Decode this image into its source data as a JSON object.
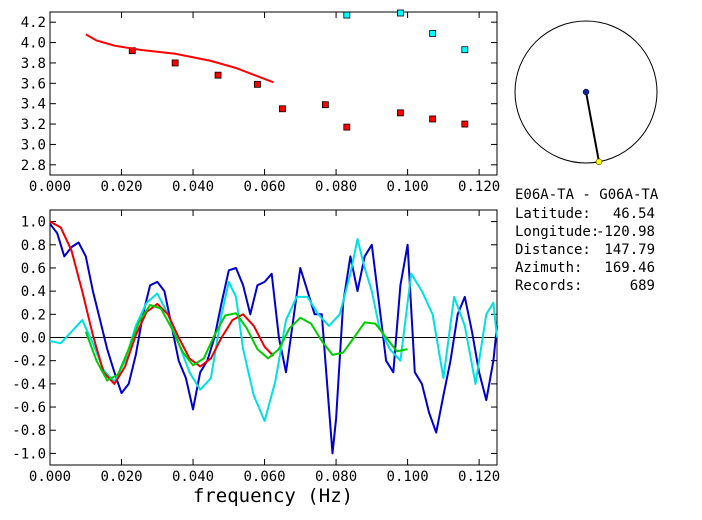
{
  "station": {
    "pair": "E06A-TA - G06A-TA",
    "lines": [
      {
        "label": "Latitude:",
        "value": "46.54"
      },
      {
        "label": "Longitude:",
        "value": "-120.98"
      },
      {
        "label": "Distance:",
        "value": "147.79"
      },
      {
        "label": "Azimuth:",
        "value": "169.46"
      },
      {
        "label": "Records:",
        "value": "689"
      }
    ],
    "azimuth_deg": 169.46
  },
  "chart_data": [
    {
      "type": "scatter",
      "title": "",
      "xlabel": "",
      "ylabel": "",
      "xlim": [
        0.0,
        0.125
      ],
      "ylim": [
        2.7,
        4.3
      ],
      "xticks": [
        "0.000",
        "0.020",
        "0.040",
        "0.060",
        "0.080",
        "0.100",
        "0.120"
      ],
      "yticks": [
        "2.8",
        "3.0",
        "3.2",
        "3.4",
        "3.6",
        "3.8",
        "4.0",
        "4.2"
      ],
      "series": [
        {
          "color": "#ff0000",
          "marker": "square",
          "points": [
            [
              0.023,
              3.92
            ],
            [
              0.035,
              3.8
            ],
            [
              0.047,
              3.68
            ],
            [
              0.058,
              3.59
            ],
            [
              0.065,
              3.35
            ],
            [
              0.077,
              3.39
            ],
            [
              0.083,
              3.17
            ],
            [
              0.098,
              3.31
            ],
            [
              0.107,
              3.25
            ],
            [
              0.116,
              3.2
            ]
          ]
        },
        {
          "color": "#00ffff",
          "marker": "square",
          "points": [
            [
              0.083,
              4.27
            ],
            [
              0.098,
              4.29
            ],
            [
              0.107,
              4.09
            ],
            [
              0.116,
              3.93
            ]
          ]
        },
        {
          "color": "#ff0000",
          "marker": "line",
          "points": [
            [
              0.01,
              4.08
            ],
            [
              0.013,
              4.02
            ],
            [
              0.018,
              3.97
            ],
            [
              0.025,
              3.93
            ],
            [
              0.035,
              3.89
            ],
            [
              0.045,
              3.82
            ],
            [
              0.052,
              3.75
            ],
            [
              0.058,
              3.67
            ],
            [
              0.0625,
              3.61
            ]
          ]
        }
      ]
    },
    {
      "type": "line",
      "title": "",
      "xlabel": "frequency (Hz)",
      "ylabel": "",
      "xlim": [
        0.0,
        0.125
      ],
      "ylim": [
        -1.1,
        1.1
      ],
      "xticks": [
        "0.000",
        "0.020",
        "0.040",
        "0.060",
        "0.080",
        "0.100",
        "0.120"
      ],
      "yticks": [
        "-1.0",
        "-0.8",
        "-0.6",
        "-0.4",
        "-0.2",
        "0.0",
        "0.2",
        "0.4",
        "0.6",
        "0.8",
        "1.0"
      ],
      "series": [
        {
          "color": "#0000cc",
          "x": [
            0.0,
            0.002,
            0.004,
            0.006,
            0.008,
            0.01,
            0.012,
            0.014,
            0.016,
            0.018,
            0.02,
            0.022,
            0.024,
            0.026,
            0.028,
            0.03,
            0.032,
            0.034,
            0.036,
            0.038,
            0.04,
            0.042,
            0.044,
            0.046,
            0.048,
            0.05,
            0.052,
            0.054,
            0.056,
            0.058,
            0.06,
            0.062,
            0.064,
            0.066,
            0.068,
            0.07,
            0.072,
            0.074,
            0.076,
            0.078,
            0.079,
            0.08,
            0.082,
            0.084,
            0.086,
            0.088,
            0.09,
            0.092,
            0.094,
            0.096,
            0.098,
            0.1,
            0.102,
            0.104,
            0.106,
            0.108,
            0.11,
            0.112,
            0.114,
            0.116,
            0.118,
            0.12,
            0.122,
            0.124,
            0.125
          ],
          "y": [
            0.98,
            0.9,
            0.7,
            0.78,
            0.82,
            0.7,
            0.4,
            0.15,
            -0.1,
            -0.3,
            -0.48,
            -0.4,
            -0.15,
            0.2,
            0.45,
            0.48,
            0.4,
            0.1,
            -0.2,
            -0.35,
            -0.62,
            -0.3,
            -0.2,
            0.0,
            0.3,
            0.58,
            0.6,
            0.45,
            0.2,
            0.45,
            0.48,
            0.55,
            0.0,
            -0.3,
            0.15,
            0.6,
            0.4,
            0.2,
            0.2,
            -0.6,
            -1.0,
            -0.7,
            0.3,
            0.7,
            0.4,
            0.7,
            0.8,
            0.3,
            -0.2,
            -0.3,
            0.45,
            0.8,
            -0.3,
            -0.4,
            -0.65,
            -0.82,
            -0.5,
            -0.2,
            0.2,
            0.35,
            0.05,
            -0.3,
            -0.54,
            -0.2,
            0.1
          ]
        },
        {
          "color": "#00e0e0",
          "x": [
            0.0,
            0.003,
            0.006,
            0.009,
            0.012,
            0.015,
            0.018,
            0.021,
            0.024,
            0.027,
            0.03,
            0.033,
            0.036,
            0.039,
            0.042,
            0.045,
            0.048,
            0.05,
            0.052,
            0.054,
            0.057,
            0.06,
            0.063,
            0.066,
            0.069,
            0.072,
            0.075,
            0.078,
            0.081,
            0.084,
            0.086,
            0.088,
            0.09,
            0.092,
            0.095,
            0.098,
            0.101,
            0.104,
            0.107,
            0.11,
            0.113,
            0.116,
            0.119,
            0.122,
            0.124,
            0.125
          ],
          "y": [
            -0.03,
            -0.05,
            0.05,
            0.15,
            -0.05,
            -0.28,
            -0.38,
            -0.2,
            0.1,
            0.3,
            0.38,
            0.2,
            -0.05,
            -0.3,
            -0.45,
            -0.35,
            0.2,
            0.48,
            0.35,
            -0.1,
            -0.5,
            -0.72,
            -0.38,
            0.15,
            0.35,
            0.35,
            0.2,
            0.1,
            0.2,
            0.55,
            0.85,
            0.6,
            0.4,
            0.1,
            -0.1,
            -0.2,
            0.55,
            0.4,
            0.2,
            -0.35,
            0.35,
            0.1,
            -0.4,
            0.2,
            0.3,
            0.0
          ]
        },
        {
          "color": "#ee0000",
          "x": [
            0.0,
            0.003,
            0.006,
            0.009,
            0.012,
            0.015,
            0.018,
            0.021,
            0.024,
            0.027,
            0.03,
            0.033,
            0.036,
            0.039,
            0.042,
            0.045,
            0.048,
            0.051,
            0.054,
            0.057,
            0.06,
            0.0625
          ],
          "y": [
            1.0,
            0.95,
            0.75,
            0.4,
            0.02,
            -0.3,
            -0.4,
            -0.25,
            0.02,
            0.22,
            0.29,
            0.2,
            0.0,
            -0.18,
            -0.25,
            -0.18,
            0.0,
            0.15,
            0.2,
            0.1,
            -0.08,
            -0.16
          ]
        },
        {
          "color": "#00cc00",
          "x": [
            0.01,
            0.013,
            0.016,
            0.019,
            0.022,
            0.025,
            0.028,
            0.031,
            0.034,
            0.037,
            0.04,
            0.043,
            0.046,
            0.049,
            0.052,
            0.055,
            0.058,
            0.061,
            0.064,
            0.067,
            0.07,
            0.073,
            0.076,
            0.079,
            0.082,
            0.085,
            0.088,
            0.091,
            0.094,
            0.097,
            0.1
          ],
          "y": [
            0.05,
            -0.2,
            -0.37,
            -0.32,
            -0.1,
            0.14,
            0.28,
            0.25,
            0.08,
            -0.12,
            -0.24,
            -0.18,
            0.02,
            0.19,
            0.21,
            0.08,
            -0.1,
            -0.18,
            -0.1,
            0.08,
            0.17,
            0.12,
            -0.03,
            -0.15,
            -0.13,
            0.0,
            0.13,
            0.12,
            0.0,
            -0.12,
            -0.1
          ]
        }
      ]
    }
  ]
}
